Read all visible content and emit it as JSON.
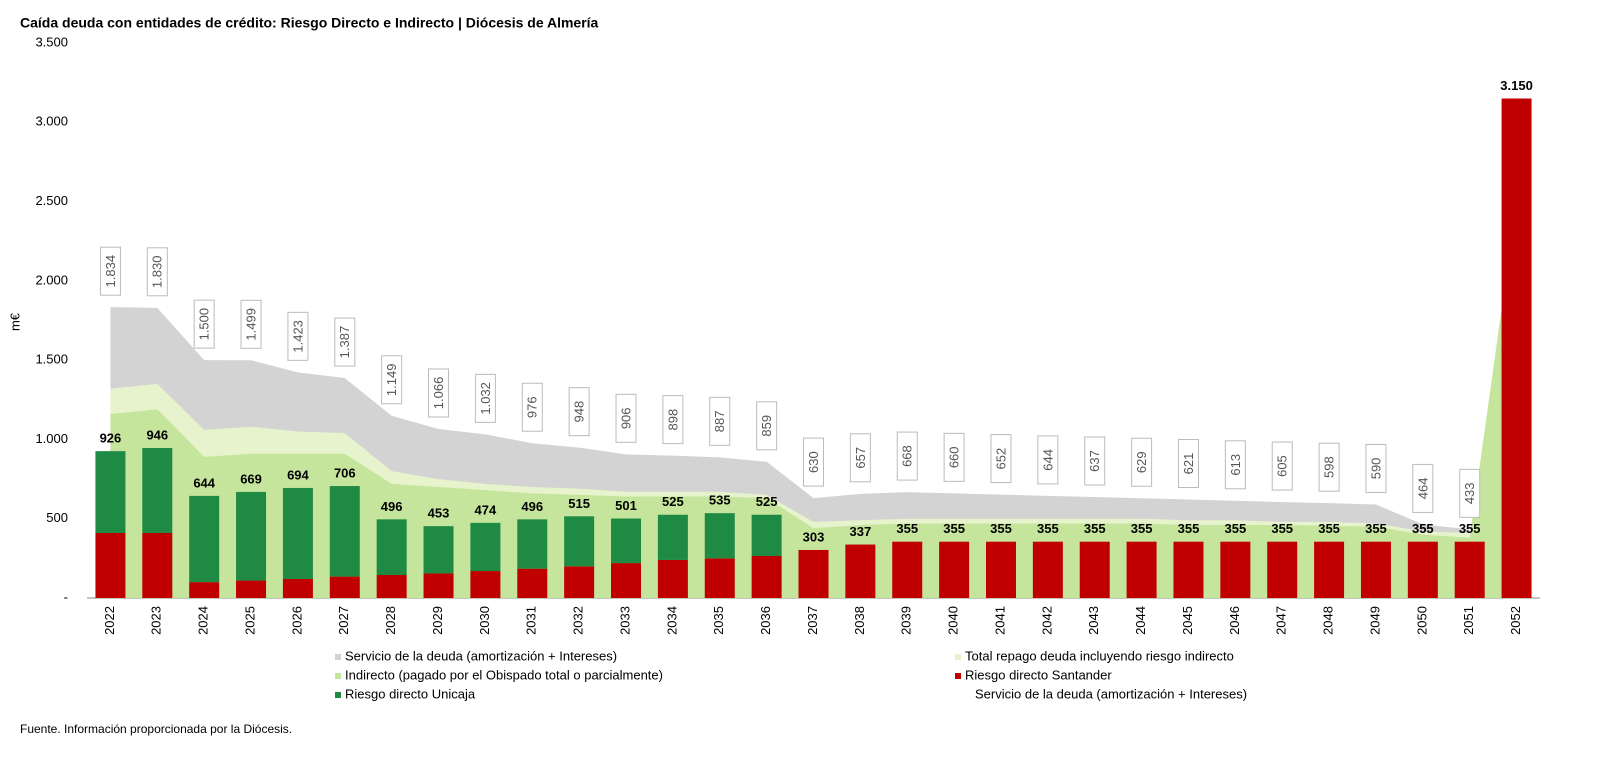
{
  "chart_data": {
    "type": "bar",
    "title": "Caída deuda con entidades de crédito: Riesgo Directo e Indirecto  | Diócesis de Almería",
    "y_label": "m€",
    "source": "Fuente. Información proporcionada por la Diócesis.",
    "categories": [
      "2022",
      "2023",
      "2024",
      "2025",
      "2026",
      "2027",
      "2028",
      "2029",
      "2030",
      "2031",
      "2032",
      "2033",
      "2034",
      "2035",
      "2036",
      "2037",
      "2038",
      "2039",
      "2040",
      "2041",
      "2042",
      "2043",
      "2044",
      "2045",
      "2046",
      "2047",
      "2048",
      "2049",
      "2050",
      "2051",
      "2052"
    ],
    "ylim": [
      0,
      3500
    ],
    "yticks": [
      {
        "value": 0,
        "label": "-"
      },
      500,
      {
        "value": 1000,
        "label": "1.000"
      },
      {
        "value": 1500,
        "label": "1.500"
      },
      {
        "value": 2000,
        "label": "2.000"
      },
      {
        "value": 2500,
        "label": "2.500"
      },
      {
        "value": 3000,
        "label": "3.000"
      },
      {
        "value": 3500,
        "label": "3.500"
      }
    ],
    "series": [
      {
        "name": "Servicio de la deuda (amortización + Intereses)",
        "kind": "area",
        "color": "#d3d3d3",
        "values": [
          1834,
          1830,
          1500,
          1499,
          1423,
          1387,
          1149,
          1066,
          1032,
          976,
          948,
          906,
          898,
          887,
          859,
          630,
          657,
          668,
          660,
          652,
          644,
          637,
          629,
          621,
          613,
          605,
          598,
          590,
          464,
          433,
          null
        ],
        "value_labels": [
          "1.834",
          "1.830",
          "1.500",
          "1.499",
          "1.423",
          "1.387",
          "1.149",
          "1.066",
          "1.032",
          "976",
          "948",
          "906",
          "898",
          "887",
          "859",
          "630",
          "657",
          "668",
          "660",
          "652",
          "644",
          "637",
          "629",
          "621",
          "613",
          "605",
          "598",
          "590",
          "464",
          "433",
          null
        ]
      },
      {
        "name": "Total repago deuda incluyendo riesgo indirecto",
        "kind": "area",
        "color": "#e6f3cc",
        "values": [
          1320,
          1350,
          1060,
          1080,
          1050,
          1040,
          800,
          750,
          720,
          700,
          690,
          670,
          670,
          670,
          650,
          480,
          490,
          500,
          500,
          500,
          500,
          500,
          500,
          490,
          490,
          480,
          480,
          470,
          420,
          410,
          null
        ]
      },
      {
        "name": "Indirecto (pagado por el Obispado total o parcialmente)",
        "kind": "area",
        "color": "#c6e59c",
        "values": [
          1160,
          1190,
          890,
          910,
          910,
          910,
          720,
          700,
          680,
          660,
          650,
          640,
          640,
          640,
          630,
          440,
          460,
          470,
          470,
          470,
          470,
          470,
          470,
          460,
          460,
          460,
          455,
          450,
          400,
          380,
          2500
        ]
      },
      {
        "name": "Riesgo directo Santander",
        "kind": "bar",
        "color": "#c00000",
        "values": [
          410,
          410,
          100,
          110,
          120,
          135,
          145,
          155,
          170,
          185,
          200,
          220,
          240,
          250,
          265,
          303,
          337,
          355,
          355,
          355,
          355,
          355,
          355,
          355,
          355,
          355,
          355,
          355,
          355,
          355,
          3150
        ]
      },
      {
        "name": "Riesgo directo Unicaja",
        "kind": "bar",
        "color": "#1e8a44",
        "values": [
          516,
          536,
          544,
          559,
          574,
          571,
          351,
          298,
          304,
          311,
          315,
          281,
          285,
          285,
          260,
          null,
          null,
          null,
          null,
          null,
          null,
          null,
          null,
          null,
          null,
          null,
          null,
          null,
          null,
          null,
          null
        ]
      }
    ],
    "totals": {
      "values": [
        926,
        946,
        644,
        669,
        694,
        706,
        496,
        453,
        474,
        496,
        515,
        501,
        525,
        535,
        525,
        303,
        337,
        355,
        355,
        355,
        355,
        355,
        355,
        355,
        355,
        355,
        355,
        355,
        355,
        355,
        3150
      ],
      "value_labels": [
        "926",
        "946",
        "644",
        "669",
        "694",
        "706",
        "496",
        "453",
        "474",
        "496",
        "515",
        "501",
        "525",
        "535",
        "525",
        "303",
        "337",
        "355",
        "355",
        "355",
        "355",
        "355",
        "355",
        "355",
        "355",
        "355",
        "355",
        "355",
        "355",
        "355",
        "3.150"
      ]
    },
    "legend_extra": "Servicio de la deuda (amortización + Intereses)"
  }
}
